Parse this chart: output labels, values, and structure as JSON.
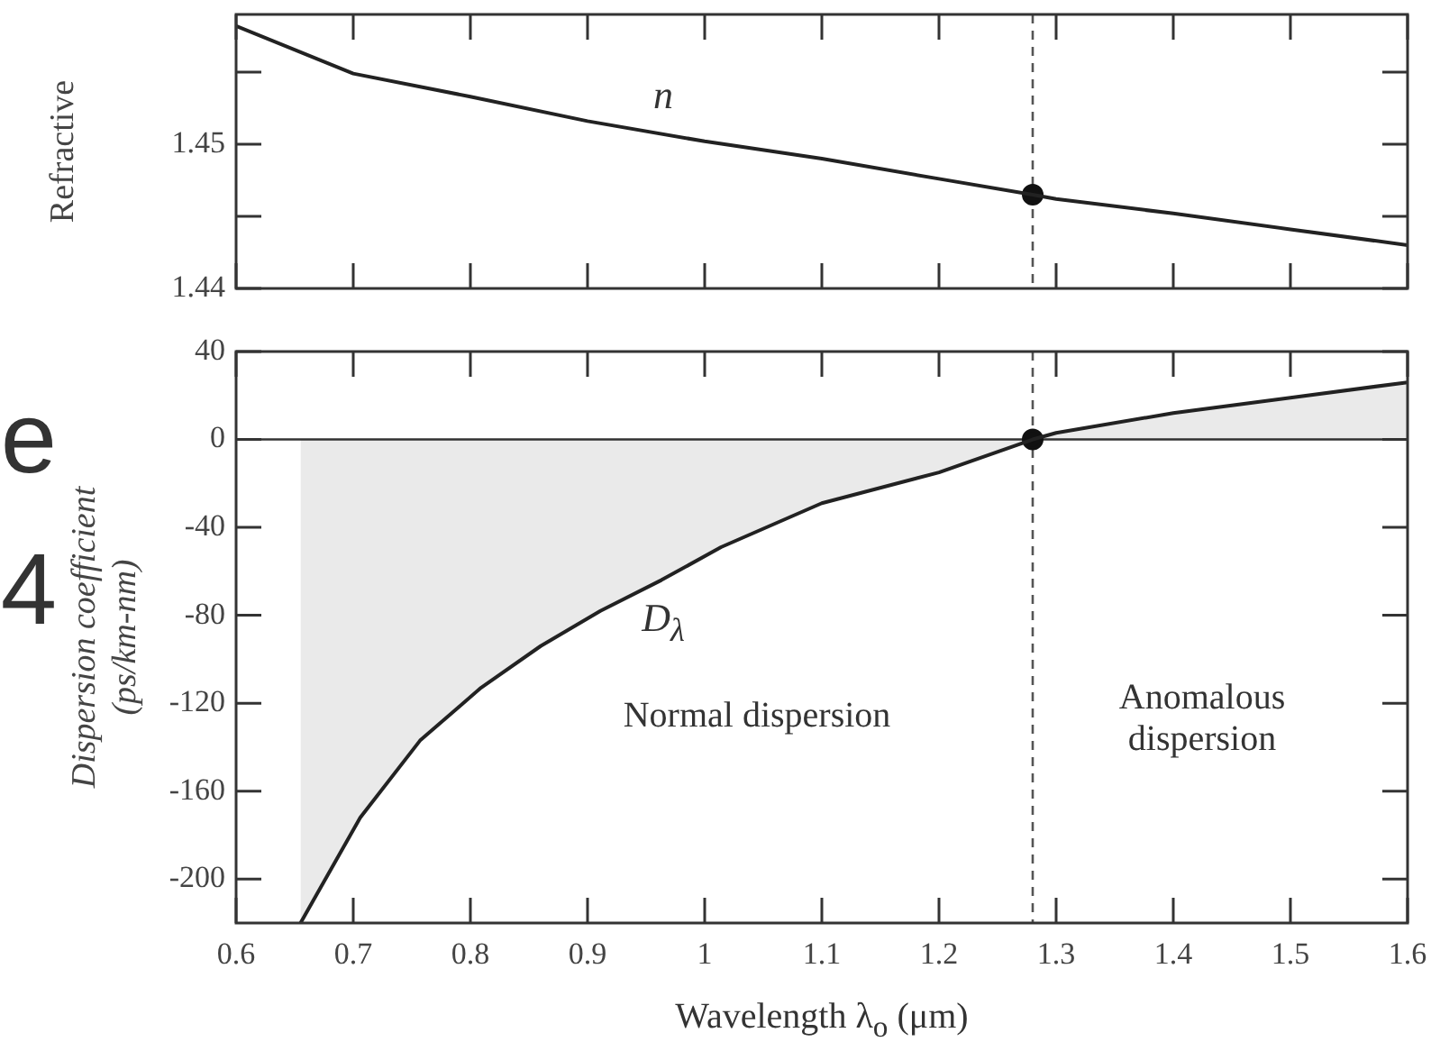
{
  "chart_data": [
    {
      "type": "line",
      "ylabel": "Refractive",
      "xlim": [
        0.6,
        1.6
      ],
      "xticks": [
        0.6,
        0.7,
        0.8,
        0.9,
        1,
        1.1,
        1.2,
        1.3,
        1.4,
        1.5,
        1.6
      ],
      "ylim": [
        1.44,
        1.459
      ],
      "yticks": [
        1.44,
        {
          "value": 1.445,
          "label": null
        },
        1.45,
        {
          "value": 1.455,
          "label": null
        }
      ],
      "tick_labels": "y",
      "grid": false,
      "legend": false,
      "series": [
        {
          "color": "#222222",
          "marker": "none",
          "x": [
            0.6,
            0.7,
            0.8,
            0.9,
            1.0,
            1.1,
            1.2,
            1.28,
            1.3,
            1.4,
            1.5,
            1.6
          ],
          "values": [
            1.4582,
            1.4549,
            1.4533,
            1.4516,
            1.4502,
            1.449,
            1.4476,
            1.4465,
            1.4462,
            1.4452,
            1.4441,
            1.443
          ]
        },
        {
          "type": "scatter",
          "color": "#111111",
          "marker": "circle",
          "x": [
            1.28
          ],
          "values": [
            1.4465
          ]
        }
      ],
      "ref_lines": [
        {
          "axis": "x",
          "value": 1.28,
          "color": "#555555",
          "line_style": "dashed"
        }
      ],
      "annotations": [
        "n"
      ]
    },
    {
      "type": "line",
      "xlabel": "Wavelength λ$_{o}$ (μm)",
      "ylabel": "Dispersion coefficient\n(ps/km-nm)",
      "xlim": [
        0.6,
        1.6
      ],
      "xticks": [
        0.6,
        0.7,
        0.8,
        0.9,
        1,
        1.1,
        1.2,
        1.3,
        1.4,
        1.5,
        1.6
      ],
      "ylim": [
        -220,
        40
      ],
      "yticks": [
        -200,
        -160,
        -120,
        -80,
        -40,
        0,
        40
      ],
      "grid": false,
      "legend": false,
      "series": [
        {
          "type": "area",
          "color": "#222222",
          "marker": "none",
          "x": [
            0.655,
            0.706,
            0.757,
            0.809,
            0.86,
            0.911,
            0.963,
            1.014,
            1.1,
            1.2,
            1.28,
            1.3,
            1.4,
            1.5,
            1.6
          ],
          "values": [
            -220,
            -172,
            -137,
            -113,
            -94,
            -78,
            -64,
            -49,
            -29,
            -15,
            0,
            3,
            12,
            19,
            26
          ]
        },
        {
          "type": "scatter",
          "color": "#111111",
          "marker": "circle",
          "x": [
            1.28
          ],
          "values": [
            0
          ]
        }
      ],
      "ref_lines": [
        {
          "axis": "x",
          "value": 1.28,
          "color": "#555555",
          "line_style": "dashed"
        },
        {
          "axis": "y",
          "value": 0,
          "color": "#333333",
          "line_style": "solid"
        }
      ],
      "annotations": [
        "D$_{λ}$",
        "Normal dispersion",
        "Anomalous dispersion",
        "e",
        "4"
      ]
    }
  ]
}
